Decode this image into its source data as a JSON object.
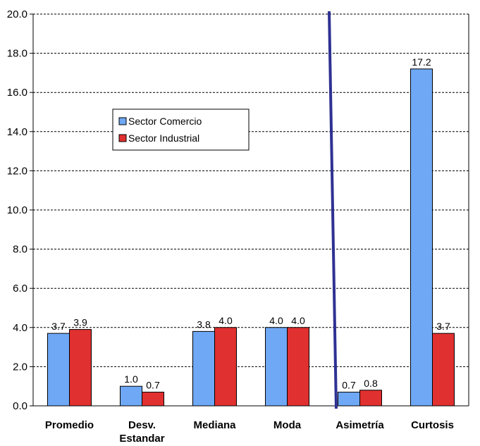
{
  "chart_data": {
    "type": "bar",
    "categories": [
      "Promedio",
      "Desv. Estandar",
      "Mediana",
      "Moda",
      "Asimetría",
      "Curtosis"
    ],
    "category_lines": [
      [
        "Promedio"
      ],
      [
        "Desv.",
        "Estandar"
      ],
      [
        "Mediana"
      ],
      [
        "Moda"
      ],
      [
        "Asimetría"
      ],
      [
        "Curtosis"
      ]
    ],
    "series": [
      {
        "name": "Sector Comercio",
        "color": "#6fa8f5",
        "values": [
          3.7,
          1.0,
          3.8,
          4.0,
          0.7,
          17.2
        ],
        "labels": [
          "3.7",
          "1.0",
          "3.8",
          "4.0",
          "0.7",
          "17.2"
        ]
      },
      {
        "name": "Sector Industrial",
        "color": "#e03030",
        "values": [
          3.9,
          0.7,
          4.0,
          4.0,
          0.8,
          3.7
        ],
        "labels": [
          "3.9",
          "0.7",
          "4.0",
          "4.0",
          "0.8",
          "3.7"
        ]
      }
    ],
    "ylim": [
      0,
      20
    ],
    "yticks": [
      "0.0",
      "2.0",
      "4.0",
      "6.0",
      "8.0",
      "10.0",
      "12.0",
      "14.0",
      "16.0",
      "18.0",
      "20.0"
    ],
    "grid": true,
    "legend_position": "upper-left",
    "divider_color": "#2e3192"
  }
}
